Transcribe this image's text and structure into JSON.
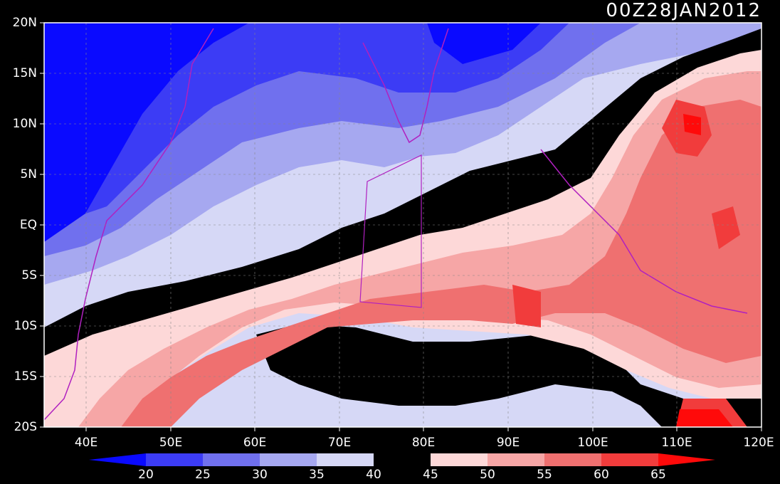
{
  "title": "00Z28JAN2012",
  "lat_ticks": [
    "20N",
    "15N",
    "10N",
    "5N",
    "EQ",
    "5S",
    "10S",
    "15S",
    "20S"
  ],
  "lon_ticks": [
    "40E",
    "50E",
    "60E",
    "70E",
    "80E",
    "90E",
    "100E",
    "110E",
    "120E"
  ],
  "colorbar": {
    "levels": [
      "20",
      "25",
      "30",
      "35",
      "40",
      "45",
      "50",
      "55",
      "60",
      "65"
    ],
    "colors": [
      "#0a0aff",
      "#3c3cf5",
      "#7070ee",
      "#a6a8f0",
      "#d6d8f6",
      "#000000",
      "#fdd8d8",
      "#f6a6a6",
      "#ef7070",
      "#f13c3c",
      "#ff0a0a"
    ]
  },
  "map": {
    "lon_range": [
      35,
      120
    ],
    "lat_range": [
      -20,
      20
    ],
    "coast_color": "#b020c0"
  }
}
